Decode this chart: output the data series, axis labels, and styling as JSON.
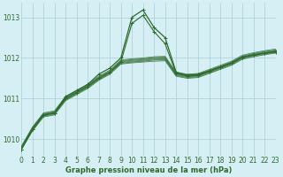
{
  "title": "Graphe pression niveau de la mer (hPa)",
  "bg_color": "#d6eff5",
  "grid_color": "#aacdd6",
  "line_color": "#2d6a2d",
  "xlim": [
    0,
    23
  ],
  "ylim": [
    1009.6,
    1013.35
  ],
  "xticks": [
    0,
    1,
    2,
    3,
    4,
    5,
    6,
    7,
    8,
    9,
    10,
    11,
    12,
    13,
    14,
    15,
    16,
    17,
    18,
    19,
    20,
    21,
    22,
    23
  ],
  "yticks": [
    1010,
    1011,
    1012,
    1013
  ],
  "line_main_x": [
    0,
    1,
    2,
    3,
    4,
    5,
    6,
    7,
    8,
    9,
    10,
    11,
    12,
    13,
    14,
    15,
    16,
    17,
    18,
    19,
    20,
    21,
    22,
    23
  ],
  "line_main_y": [
    1009.75,
    1010.25,
    1010.6,
    1010.65,
    1011.05,
    1011.2,
    1011.35,
    1011.6,
    1011.75,
    1012.0,
    1013.0,
    1013.18,
    1012.75,
    1012.5,
    1011.65,
    1011.58,
    1011.6,
    1011.68,
    1011.78,
    1011.88,
    1012.02,
    1012.08,
    1012.12,
    1012.15
  ],
  "band_lines": [
    [
      1009.75,
      1010.2,
      1010.55,
      1010.6,
      1010.95,
      1011.1,
      1011.25,
      1011.45,
      1011.6,
      1011.85,
      1011.88,
      1011.9,
      1011.92,
      1011.93,
      1011.55,
      1011.5,
      1011.52,
      1011.62,
      1011.72,
      1011.82,
      1011.97,
      1012.03,
      1012.08,
      1012.12
    ],
    [
      1009.75,
      1010.22,
      1010.57,
      1010.62,
      1010.97,
      1011.12,
      1011.27,
      1011.47,
      1011.62,
      1011.87,
      1011.9,
      1011.92,
      1011.95,
      1011.96,
      1011.57,
      1011.52,
      1011.54,
      1011.64,
      1011.74,
      1011.84,
      1011.99,
      1012.05,
      1012.1,
      1012.14
    ],
    [
      1009.77,
      1010.24,
      1010.59,
      1010.64,
      1010.99,
      1011.14,
      1011.29,
      1011.49,
      1011.64,
      1011.89,
      1011.92,
      1011.94,
      1011.97,
      1011.98,
      1011.59,
      1011.54,
      1011.56,
      1011.66,
      1011.76,
      1011.86,
      1012.01,
      1012.07,
      1012.12,
      1012.16
    ],
    [
      1009.79,
      1010.26,
      1010.61,
      1010.66,
      1011.01,
      1011.16,
      1011.31,
      1011.51,
      1011.66,
      1011.91,
      1011.94,
      1011.96,
      1011.99,
      1012.0,
      1011.61,
      1011.56,
      1011.58,
      1011.68,
      1011.78,
      1011.88,
      1012.03,
      1012.09,
      1012.14,
      1012.18
    ],
    [
      1009.81,
      1010.28,
      1010.63,
      1010.68,
      1011.03,
      1011.18,
      1011.33,
      1011.53,
      1011.68,
      1011.93,
      1011.96,
      1011.98,
      1012.01,
      1012.02,
      1011.63,
      1011.58,
      1011.6,
      1011.7,
      1011.8,
      1011.9,
      1012.05,
      1012.11,
      1012.16,
      1012.2
    ],
    [
      1009.83,
      1010.3,
      1010.65,
      1010.7,
      1011.05,
      1011.2,
      1011.35,
      1011.55,
      1011.7,
      1011.95,
      1011.98,
      1012.0,
      1012.03,
      1012.04,
      1011.65,
      1011.6,
      1011.62,
      1011.72,
      1011.82,
      1011.92,
      1012.07,
      1012.13,
      1012.18,
      1012.22
    ]
  ],
  "line_secondary_x": [
    0,
    1,
    2,
    3,
    4,
    5,
    6,
    7,
    8,
    9,
    10,
    11,
    12,
    13,
    14,
    15,
    16,
    17,
    18,
    19,
    20,
    21,
    22,
    23
  ],
  "line_secondary_y": [
    1009.75,
    1010.25,
    1010.6,
    1010.65,
    1011.0,
    1011.15,
    1011.3,
    1011.5,
    1011.65,
    1011.9,
    1012.85,
    1013.05,
    1012.65,
    1012.35,
    1011.62,
    1011.55,
    1011.57,
    1011.67,
    1011.77,
    1011.87,
    1012.02,
    1012.07,
    1012.12,
    1012.17
  ]
}
